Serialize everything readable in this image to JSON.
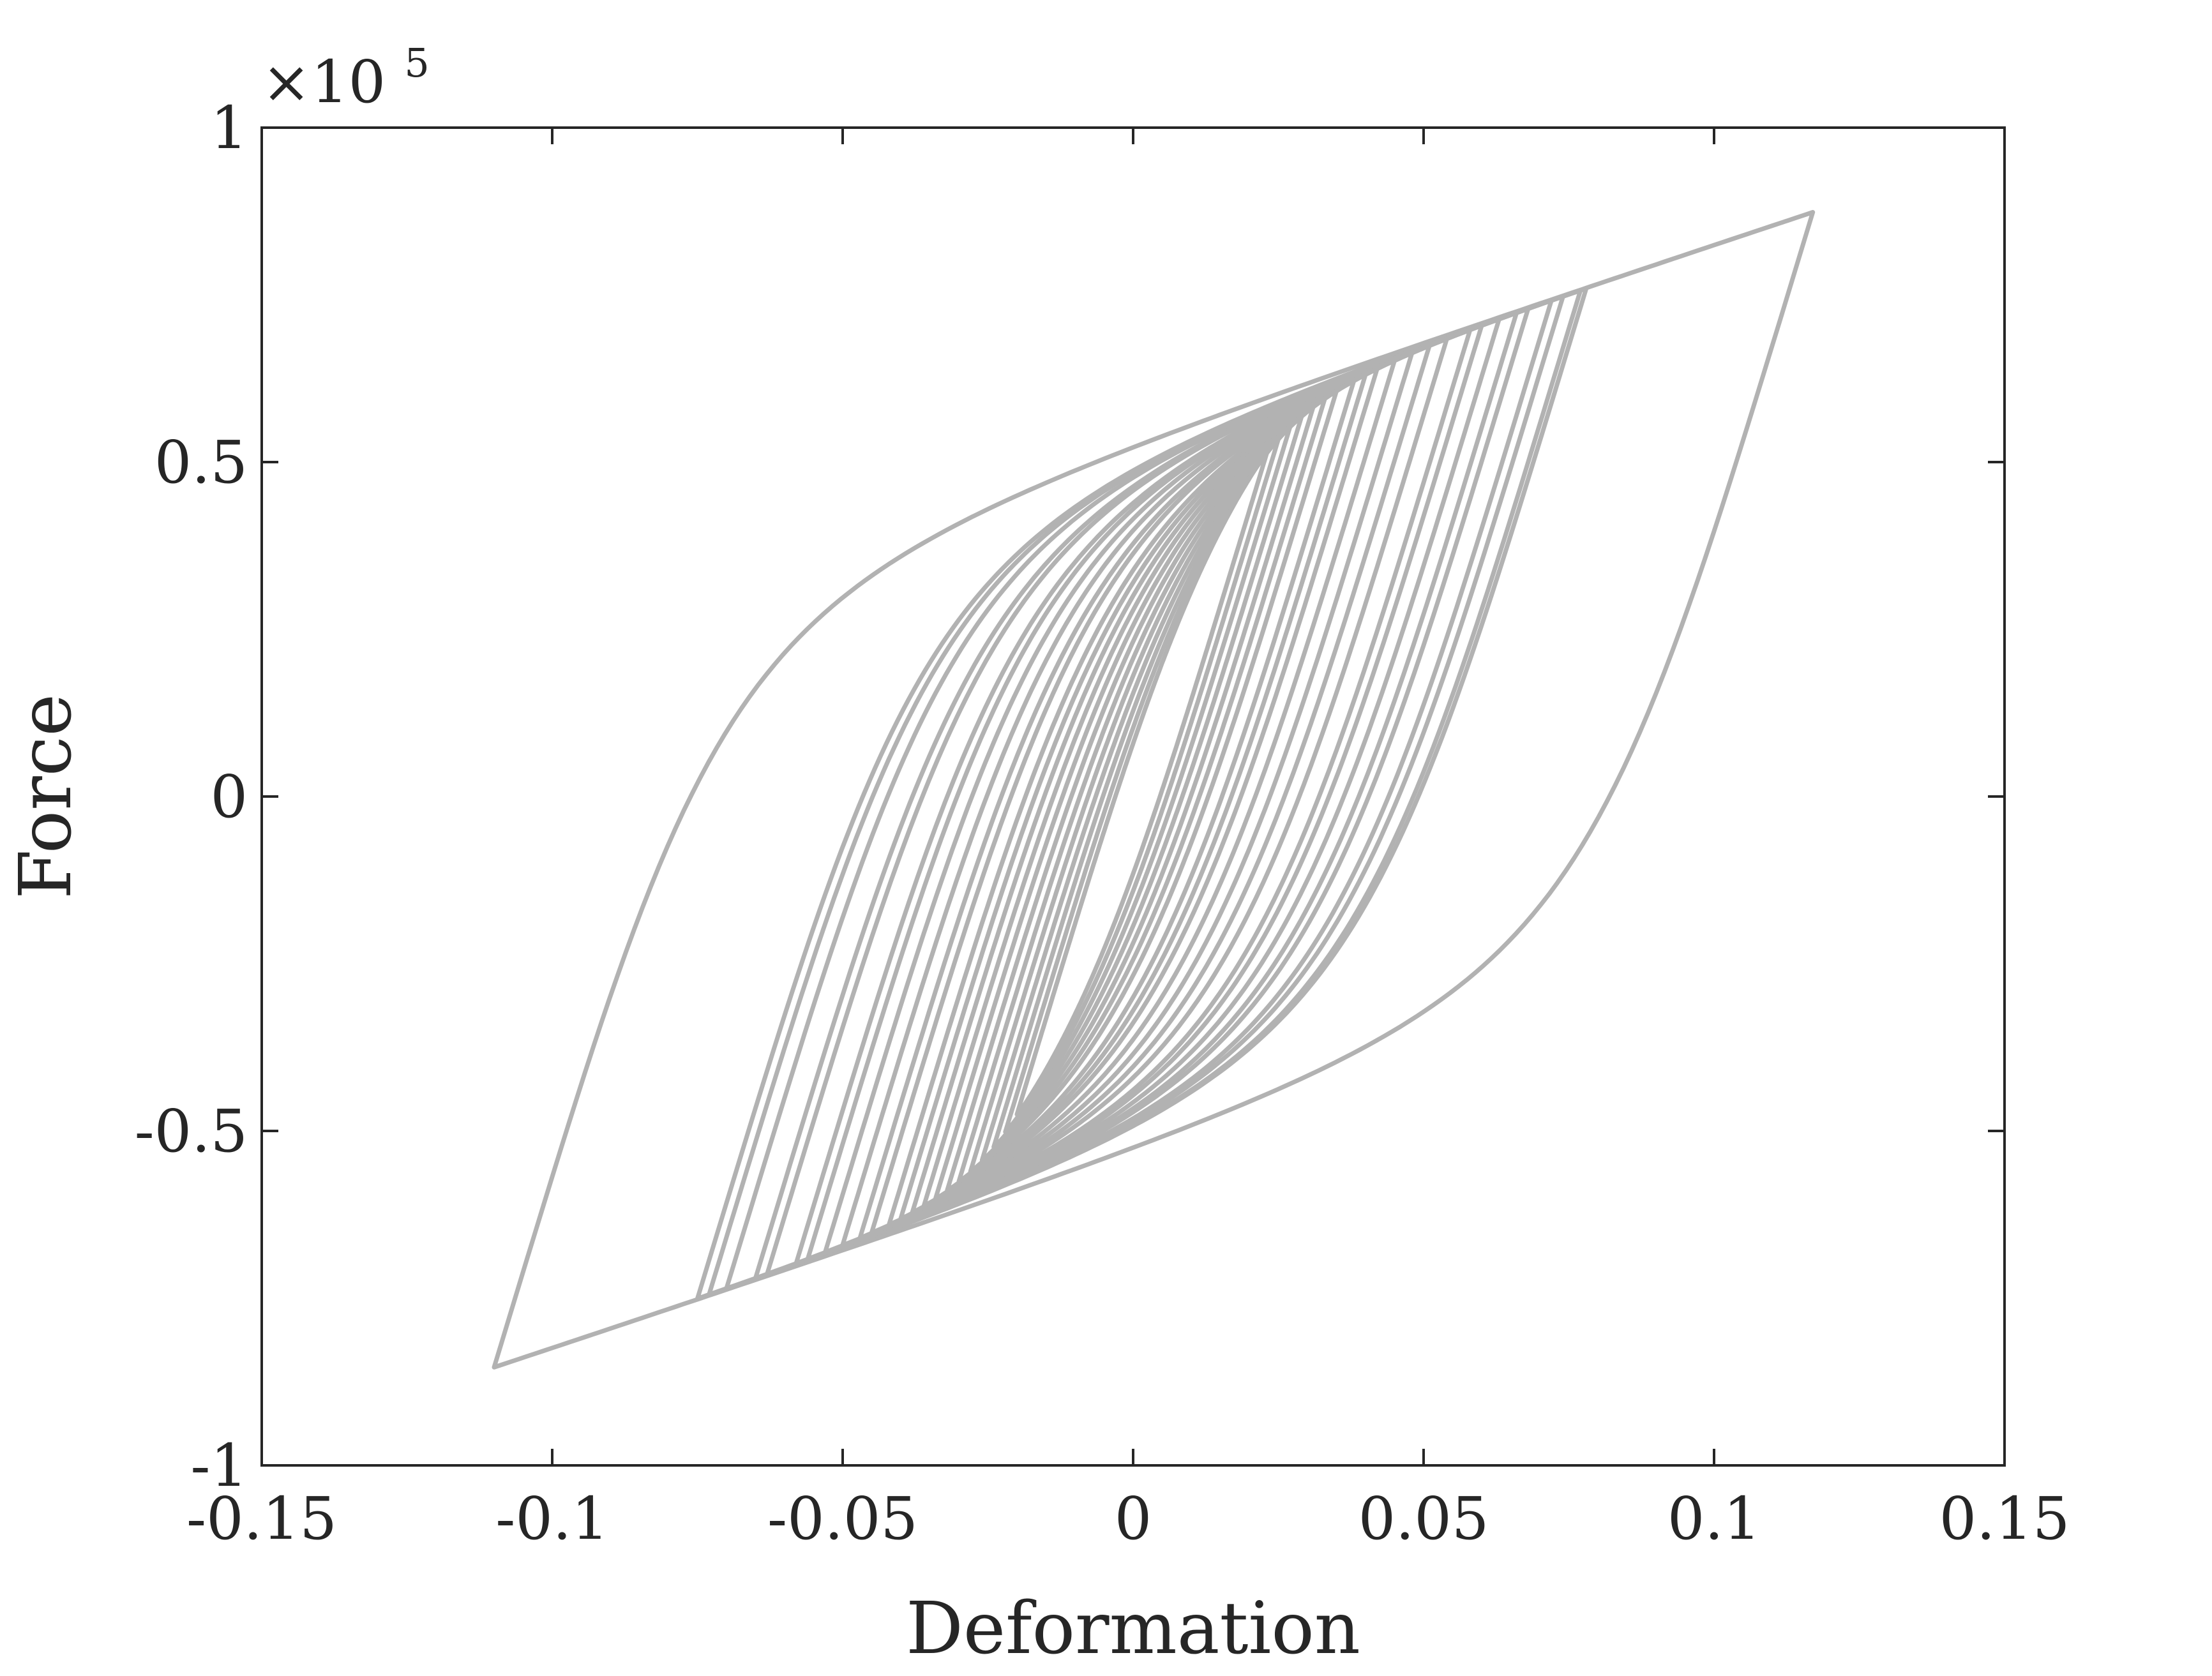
{
  "chart_data": {
    "type": "line",
    "title": "",
    "xlabel": "Deformation",
    "ylabel": "Force",
    "y_exponent_label": "×10",
    "y_exponent_power": "5",
    "xlim": [
      -0.15,
      0.15
    ],
    "ylim": [
      -100000,
      100000
    ],
    "x_ticks": [
      -0.15,
      -0.1,
      -0.05,
      0,
      0.05,
      0.1,
      0.15
    ],
    "x_tick_labels": [
      "-0.15",
      "-0.1",
      "-0.05",
      "0",
      "0.05",
      "0.1",
      "0.15"
    ],
    "y_ticks": [
      -100000,
      -50000,
      0,
      50000,
      100000
    ],
    "y_tick_labels": [
      "-1",
      "-0.5",
      "0",
      "0.5",
      "1"
    ],
    "grid": false,
    "line_color": "#b2b2b2",
    "model": {
      "k0": 2860000,
      "fy": 60000,
      "alpha": 0.1,
      "smooth_exp": 3
    },
    "cycles": [
      {
        "xmin": -0.11,
        "xmax": 0.117
      },
      {
        "xmin": -0.075,
        "xmax": 0.078
      },
      {
        "xmin": -0.073,
        "xmax": 0.077
      },
      {
        "xmin": -0.07,
        "xmax": 0.074
      },
      {
        "xmin": -0.065,
        "xmax": 0.072
      },
      {
        "xmin": -0.063,
        "xmax": 0.068
      },
      {
        "xmin": -0.058,
        "xmax": 0.066
      },
      {
        "xmin": -0.056,
        "xmax": 0.063
      },
      {
        "xmin": -0.053,
        "xmax": 0.06
      },
      {
        "xmin": -0.05,
        "xmax": 0.058
      },
      {
        "xmin": -0.047,
        "xmax": 0.054
      },
      {
        "xmin": -0.045,
        "xmax": 0.051
      },
      {
        "xmin": -0.042,
        "xmax": 0.048
      },
      {
        "xmin": -0.04,
        "xmax": 0.045
      },
      {
        "xmin": -0.038,
        "xmax": 0.042
      },
      {
        "xmin": -0.036,
        "xmax": 0.04
      },
      {
        "xmin": -0.034,
        "xmax": 0.038
      },
      {
        "xmin": -0.032,
        "xmax": 0.035
      },
      {
        "xmin": -0.03,
        "xmax": 0.033
      },
      {
        "xmin": -0.028,
        "xmax": 0.031
      },
      {
        "xmin": -0.026,
        "xmax": 0.029
      },
      {
        "xmin": -0.024,
        "xmax": 0.027
      },
      {
        "xmin": -0.022,
        "xmax": 0.025
      },
      {
        "xmin": -0.02,
        "xmax": 0.023
      }
    ]
  }
}
